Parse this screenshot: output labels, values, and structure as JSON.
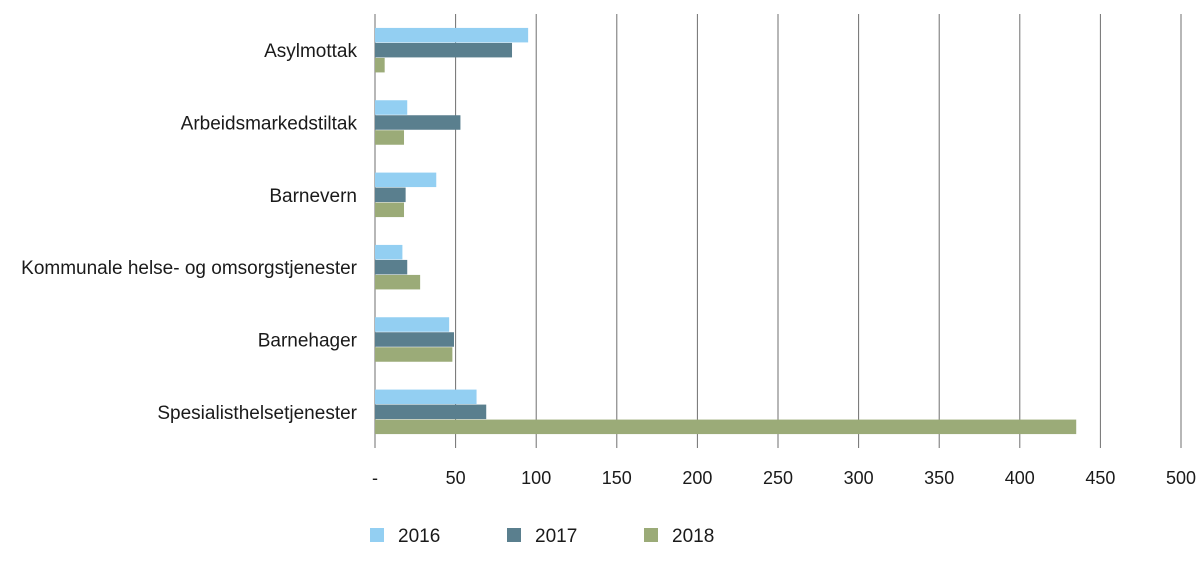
{
  "chart_data": {
    "type": "bar",
    "orientation": "horizontal",
    "categories": [
      "Asylmottak",
      "Arbeidsmarkedstiltak",
      "Barnevern",
      "Kommunale helse- og omsorgstjenester",
      "Barnehager",
      "Spesialisthelsetjenester"
    ],
    "series": [
      {
        "name": "2016",
        "color": "#93cff2",
        "values": [
          95,
          20,
          38,
          17,
          46,
          63
        ]
      },
      {
        "name": "2017",
        "color": "#5a7f8e",
        "values": [
          85,
          53,
          19,
          20,
          49,
          69
        ]
      },
      {
        "name": "2018",
        "color": "#9bab78",
        "values": [
          6,
          18,
          18,
          28,
          48,
          435
        ]
      }
    ],
    "xlim": [
      0,
      500
    ],
    "xticks": [
      0,
      50,
      100,
      150,
      200,
      250,
      300,
      350,
      400,
      450,
      500
    ],
    "xtick_labels": [
      "-",
      "50",
      "100",
      "150",
      "200",
      "250",
      "300",
      "350",
      "400",
      "450",
      "500"
    ],
    "grid": "vertical",
    "legend": "bottom",
    "title": "",
    "xlabel": "",
    "ylabel": ""
  }
}
